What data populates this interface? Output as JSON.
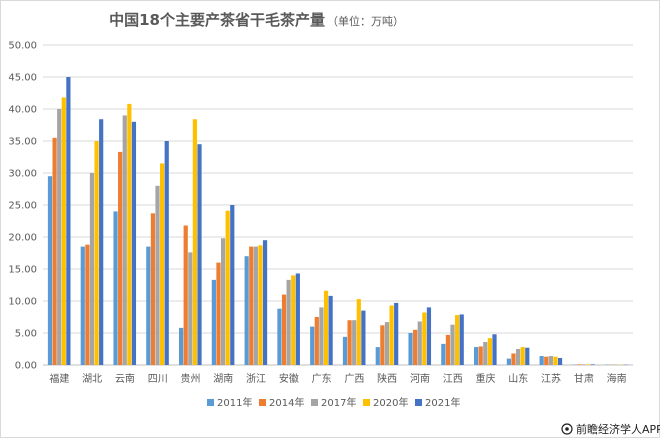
{
  "watermark": {
    "icon": "eye-logo-icon",
    "text": "前瞻经济学人APP"
  },
  "chart_data": {
    "type": "bar",
    "title": "中国18个主要产茶省干毛茶产量",
    "subtitle": "（单位：万吨）",
    "xlabel": "",
    "ylabel": "",
    "ylim": [
      0,
      50
    ],
    "yticks": [
      "0.00",
      "5.00",
      "10.00",
      "15.00",
      "20.00",
      "25.00",
      "30.00",
      "35.00",
      "40.00",
      "45.00",
      "50.00"
    ],
    "grid": true,
    "legend_position": "bottom",
    "categories": [
      "福建",
      "湖北",
      "云南",
      "四川",
      "贵州",
      "湖南",
      "浙江",
      "安徽",
      "广东",
      "广西",
      "陕西",
      "河南",
      "江西",
      "重庆",
      "山东",
      "江苏",
      "甘肃",
      "海南"
    ],
    "series": [
      {
        "name": "2011年",
        "color": "#5b9bd5",
        "values": [
          29.5,
          18.5,
          24.0,
          18.5,
          5.8,
          13.3,
          17.0,
          8.8,
          6.0,
          4.4,
          2.8,
          5.0,
          3.3,
          2.8,
          1.0,
          1.4,
          0.05,
          0.05
        ]
      },
      {
        "name": "2014年",
        "color": "#ed7d31",
        "values": [
          35.5,
          18.8,
          33.3,
          23.7,
          21.8,
          16.0,
          18.5,
          11.0,
          7.5,
          7.0,
          6.2,
          5.5,
          4.7,
          2.9,
          1.8,
          1.3,
          0.1,
          0.05
        ]
      },
      {
        "name": "2017年",
        "color": "#a5a5a5",
        "values": [
          40.0,
          30.0,
          39.0,
          28.0,
          17.6,
          19.8,
          18.5,
          13.3,
          9.0,
          7.0,
          6.7,
          6.8,
          6.3,
          3.6,
          2.5,
          1.4,
          0.1,
          0.05
        ]
      },
      {
        "name": "2020年",
        "color": "#ffc000",
        "values": [
          41.8,
          35.0,
          40.8,
          31.5,
          38.4,
          24.1,
          18.7,
          14.0,
          11.6,
          10.3,
          9.3,
          8.2,
          7.8,
          4.2,
          2.8,
          1.3,
          0.1,
          0.05
        ]
      },
      {
        "name": "2021年",
        "color": "#4472c4",
        "values": [
          45.0,
          38.4,
          38.0,
          35.0,
          34.5,
          25.0,
          19.5,
          14.3,
          10.8,
          8.5,
          9.7,
          9.0,
          7.9,
          4.8,
          2.7,
          1.1,
          0.1,
          0.05
        ]
      }
    ]
  }
}
